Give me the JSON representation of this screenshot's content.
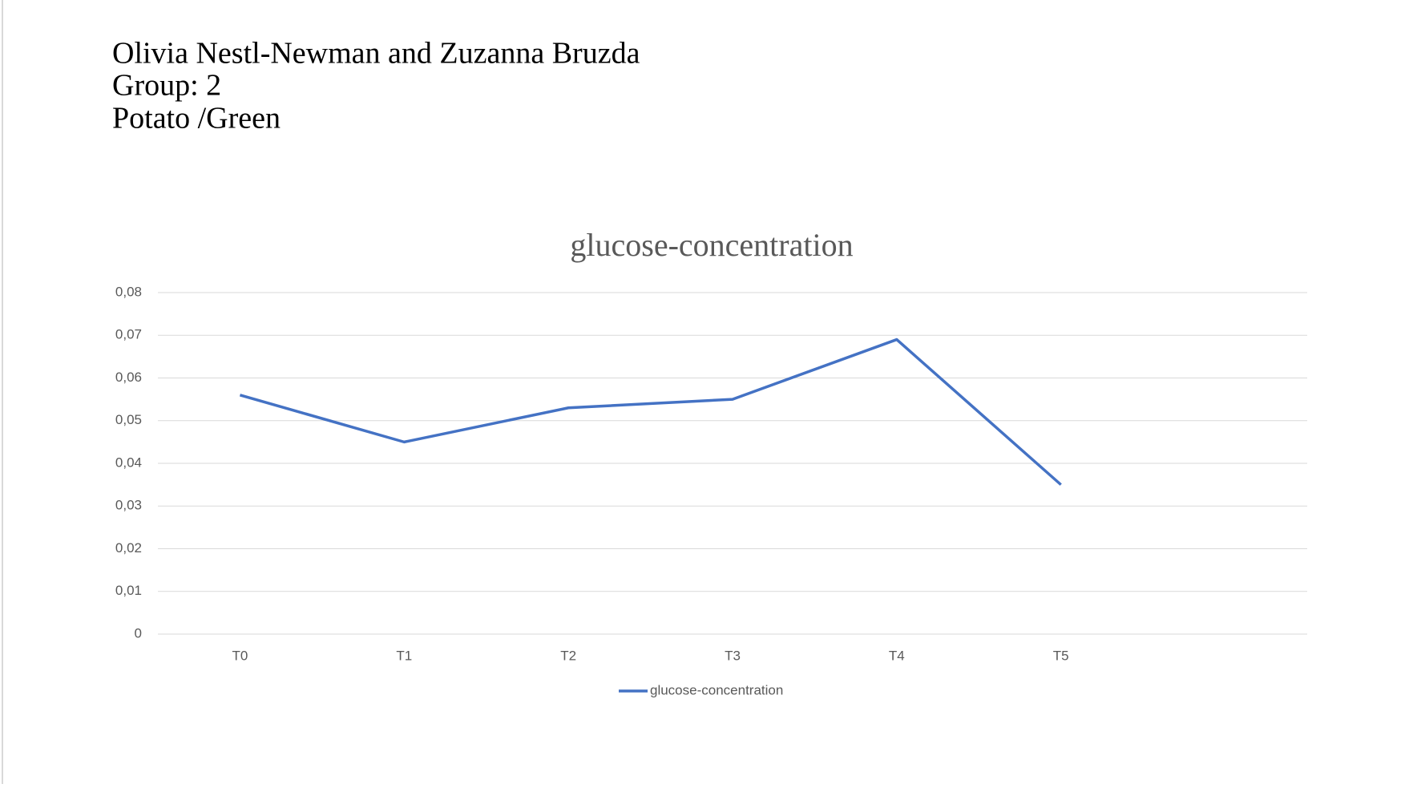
{
  "header": {
    "lines": [
      "Olivia Nestl-Newman and Zuzanna Bruzda",
      "Group: 2",
      "Potato /Green"
    ]
  },
  "chart_data": {
    "type": "line",
    "title": "glucose-concentration",
    "categories": [
      "T0",
      "T1",
      "T2",
      "T3",
      "T4",
      "T5",
      null
    ],
    "series": [
      {
        "name": "glucose-concentration",
        "color": "#4472c4",
        "values": [
          0.056,
          0.045,
          0.053,
          0.055,
          0.069,
          0.035,
          null
        ]
      }
    ],
    "ylim": [
      0,
      0.08
    ],
    "yticks": [
      0,
      {
        "value": 0.01,
        "label": "0,01"
      },
      {
        "value": 0.02,
        "label": "0,02"
      },
      {
        "value": 0.03,
        "label": "0,03"
      },
      {
        "value": 0.04,
        "label": "0,04"
      },
      {
        "value": 0.05,
        "label": "0,05"
      },
      {
        "value": 0.06,
        "label": "0,06"
      },
      {
        "value": 0.07,
        "label": "0,07"
      },
      {
        "value": 0.08,
        "label": "0,08"
      }
    ],
    "grid": true,
    "legend": "bottom"
  }
}
